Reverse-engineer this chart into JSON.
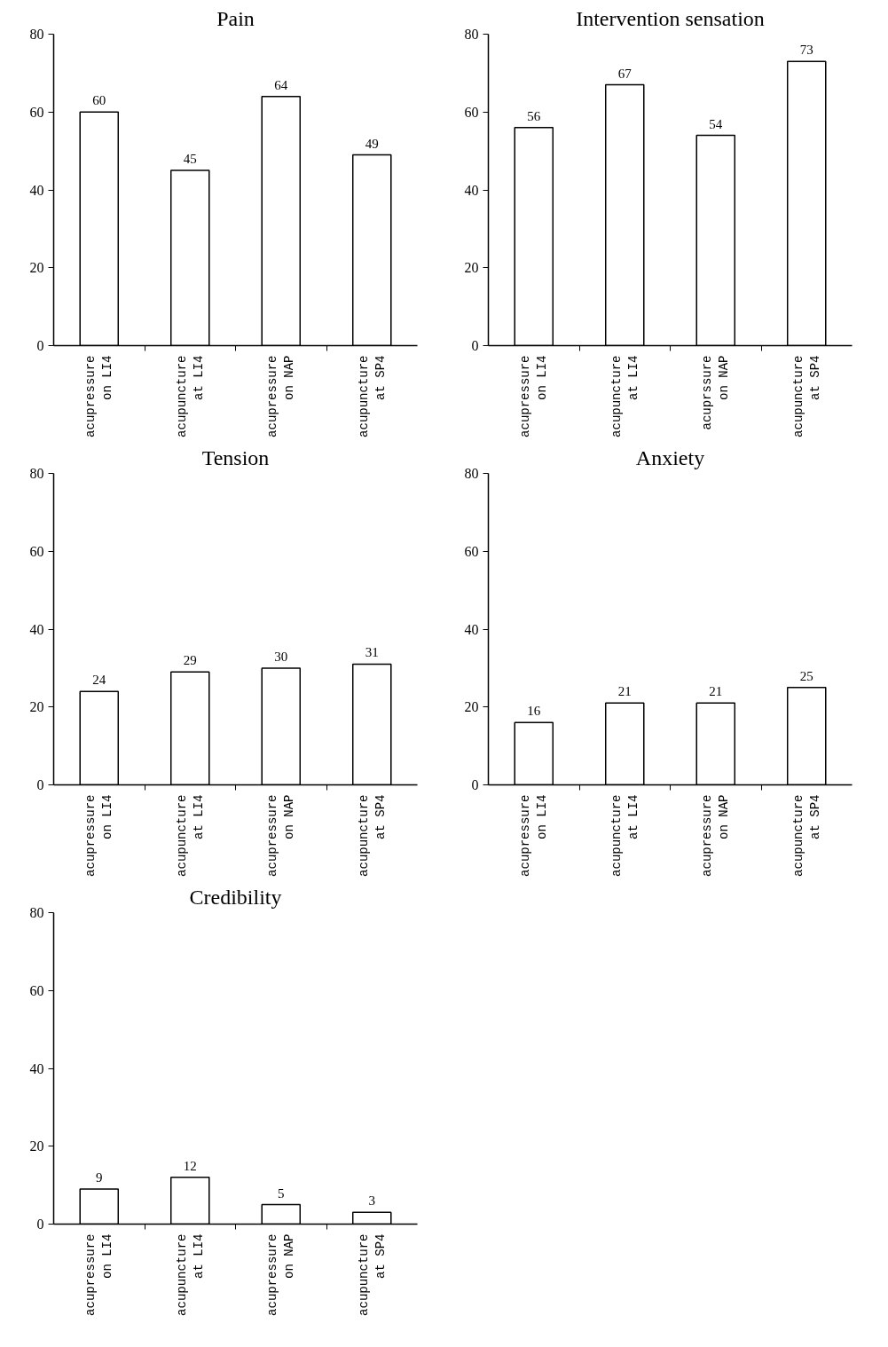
{
  "chart_data": [
    {
      "type": "bar",
      "title": "Pain",
      "categories": [
        "acupressure on LI4",
        "acupuncture at LI4",
        "acupressure on NAP",
        "acupuncture at SP4"
      ],
      "values": [
        60,
        45,
        64,
        49
      ],
      "color": "#ffffff",
      "ylim": [
        0,
        80
      ],
      "yticks": [
        0,
        20,
        40,
        60,
        80
      ],
      "data_labels": true
    },
    {
      "type": "bar",
      "title": "Intervention sensation",
      "categories": [
        "acupressure on LI4",
        "acupuncture at LI4",
        "acuprssure on NAP",
        "acupuncture at SP4"
      ],
      "values": [
        56,
        67,
        54,
        73
      ],
      "color": "#ffffff",
      "ylim": [
        0,
        80
      ],
      "yticks": [
        0,
        20,
        40,
        60,
        80
      ],
      "data_labels": true
    },
    {
      "type": "bar",
      "title": "Tension",
      "categories": [
        "acupressure on LI4",
        "acupuncture at LI4",
        "acupressure on NAP",
        "acupuncture at SP4"
      ],
      "values": [
        24,
        29,
        30,
        31
      ],
      "color": "#ffffff",
      "ylim": [
        0,
        80
      ],
      "yticks": [
        0,
        20,
        40,
        60,
        80
      ],
      "data_labels": true
    },
    {
      "type": "bar",
      "title": "Anxiety",
      "categories": [
        "acupressure on LI4",
        "acupuncture at LI4",
        "acupressure on NAP",
        "acupuncture at SP4"
      ],
      "values": [
        16,
        21,
        21,
        25
      ],
      "color": "#ffffff",
      "ylim": [
        0,
        80
      ],
      "yticks": [
        0,
        20,
        40,
        60,
        80
      ],
      "data_labels": true
    },
    {
      "type": "bar",
      "title": "Credibility",
      "categories": [
        "acupressure on LI4",
        "acupuncture at LI4",
        "acupressure on NAP",
        "acupuncture at SP4"
      ],
      "values": [
        9,
        12,
        5,
        3
      ],
      "color": "#ffffff",
      "ylim": [
        0,
        80
      ],
      "yticks": [
        0,
        20,
        40,
        60,
        80
      ],
      "data_labels": true
    }
  ]
}
